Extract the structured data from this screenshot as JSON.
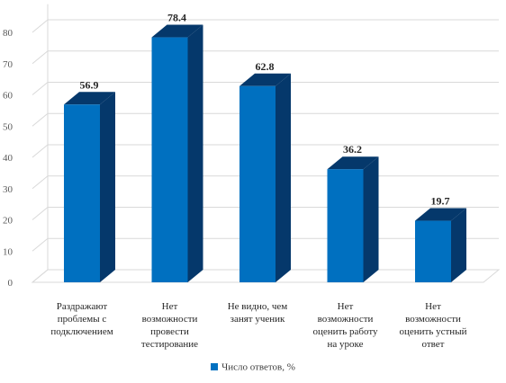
{
  "chart_data": {
    "type": "bar",
    "categories": [
      [
        "Раздражают",
        "проблемы с",
        "подключением"
      ],
      [
        "Нет",
        "возможности",
        "провести",
        "тестирование"
      ],
      [
        "Не видно, чем",
        "занят ученик"
      ],
      [
        "Нет",
        "возможности",
        "оценить работу",
        "на уроке"
      ],
      [
        "Нет",
        "возможности",
        "оценить устный",
        "ответ"
      ]
    ],
    "series": [
      {
        "name": "Число ответов, %",
        "values": [
          56.9,
          78.4,
          62.8,
          36.2,
          19.7
        ]
      }
    ],
    "data_labels": [
      "56.9",
      "78.4",
      "62.8",
      "36.2",
      "19.7"
    ],
    "y_ticks": [
      "0",
      "10",
      "20",
      "30",
      "40",
      "50",
      "60",
      "70",
      "80"
    ],
    "ylim": [
      0,
      85
    ],
    "grid": true,
    "style": "3d-column",
    "legend_position": "bottom",
    "colors": {
      "front": "#0070c0",
      "side": "#05386b",
      "top": "#05386b",
      "grid": "#d9d9d9",
      "wall": "#bfbfbf"
    }
  }
}
